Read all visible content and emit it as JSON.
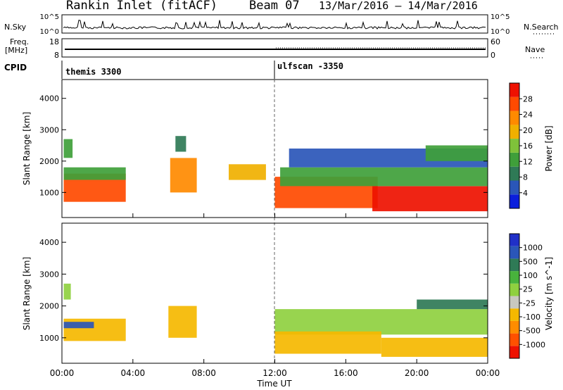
{
  "header": {
    "station": "Rankin Inlet (fitACF)",
    "beam": "Beam 07",
    "date_range": "13/Mar/2016 – 14/Mar/2016"
  },
  "strip_nsky": {
    "left_label": "N.Sky",
    "right_label": "N.Search",
    "tick_top": "10^5",
    "tick_bottom": "10^0",
    "right_tick_top": "10^5",
    "right_tick_bottom": "10^0"
  },
  "strip_freq": {
    "left_label_1": "Freq.",
    "left_label_2": "[MHz]",
    "left_tick_top": "18",
    "left_tick_bottom": "8",
    "right_label": "Nave",
    "right_tick_top": "60",
    "right_tick_bottom": "0"
  },
  "strip_cpid": {
    "label": "CPID",
    "segments": [
      {
        "name": "themis 3300",
        "start_hour": 0
      },
      {
        "name": "ulfscan -3350",
        "start_hour": 12
      }
    ]
  },
  "colors": {
    "power": [
      "#0a1edc",
      "#2a56b8",
      "#2f7a56",
      "#3f9f3a",
      "#7fc23a",
      "#f0b000",
      "#ff8a00",
      "#ff4a00",
      "#ee1100"
    ],
    "velocity": [
      "#2030c8",
      "#2a56b8",
      "#2f7a56",
      "#48b23c",
      "#8fd040",
      "#c8c8c0",
      "#f5b800",
      "#ff8c00",
      "#ff5000",
      "#ee1100"
    ]
  },
  "chart_data": [
    {
      "type": "heatmap",
      "name": "power",
      "ylabel": "Slant Range [km]",
      "ylim": [
        200,
        4600
      ],
      "yticks": [
        1000,
        2000,
        3000,
        4000
      ],
      "xlim_hours": [
        0,
        24
      ],
      "colorbar": {
        "label": "Power [dB]",
        "range": [
          0,
          32
        ],
        "tick_labels": [
          "4",
          "8",
          "12",
          "16",
          "20",
          "24",
          "28"
        ]
      },
      "regions": [
        {
          "t0": 0.1,
          "t1": 3.6,
          "r0": 700,
          "r1": 1600,
          "v": 27
        },
        {
          "t0": 0.1,
          "t1": 3.6,
          "r0": 1400,
          "r1": 1800,
          "v": 12
        },
        {
          "t0": 0.1,
          "t1": 0.6,
          "r0": 2100,
          "r1": 2700,
          "v": 14
        },
        {
          "t0": 6.1,
          "t1": 7.6,
          "r0": 1000,
          "r1": 2100,
          "v": 22
        },
        {
          "t0": 6.4,
          "t1": 7.0,
          "r0": 2300,
          "r1": 2800,
          "v": 10
        },
        {
          "t0": 9.4,
          "t1": 11.5,
          "r0": 1400,
          "r1": 1900,
          "v": 18
        },
        {
          "t0": 12.0,
          "t1": 17.8,
          "r0": 500,
          "r1": 1500,
          "v": 28
        },
        {
          "t0": 12.3,
          "t1": 24.0,
          "r0": 1200,
          "r1": 1800,
          "v": 12
        },
        {
          "t0": 17.5,
          "t1": 24.0,
          "r0": 400,
          "r1": 1200,
          "v": 30
        },
        {
          "t0": 12.8,
          "t1": 24.0,
          "r0": 1800,
          "r1": 2400,
          "v": 6
        },
        {
          "t0": 20.5,
          "t1": 24.0,
          "r0": 2000,
          "r1": 2500,
          "v": 13
        }
      ]
    },
    {
      "type": "heatmap",
      "name": "velocity",
      "ylabel": "Slant Range [km]",
      "ylim": [
        200,
        4600
      ],
      "yticks": [
        1000,
        2000,
        3000,
        4000
      ],
      "xlim_hours": [
        0,
        24
      ],
      "xticks": [
        "00:00",
        "04:00",
        "08:00",
        "12:00",
        "16:00",
        "20:00",
        "00:00"
      ],
      "xlabel": "Time UT",
      "colorbar": {
        "label": "Velocity [m s^-1]",
        "tick_labels": [
          "1000",
          "500",
          "100",
          "25",
          "-25",
          "-100",
          "-500",
          "-1000"
        ]
      },
      "regions": [
        {
          "t0": 0.1,
          "t1": 3.6,
          "r0": 900,
          "r1": 1600,
          "v": -400
        },
        {
          "t0": 0.1,
          "t1": 1.8,
          "r0": 1300,
          "r1": 1500,
          "v": 700
        },
        {
          "t0": 0.1,
          "t1": 0.5,
          "r0": 2200,
          "r1": 2700,
          "v": 0
        },
        {
          "t0": 6.0,
          "t1": 7.6,
          "r0": 1000,
          "r1": 2000,
          "v": -300
        },
        {
          "t0": 12.0,
          "t1": 24.0,
          "r0": 1100,
          "r1": 1900,
          "v": 0
        },
        {
          "t0": 12.0,
          "t1": 18.0,
          "r0": 500,
          "r1": 1200,
          "v": -200
        },
        {
          "t0": 18.0,
          "t1": 24.0,
          "r0": 400,
          "r1": 1000,
          "v": -150
        },
        {
          "t0": 20.0,
          "t1": 24.0,
          "r0": 1900,
          "r1": 2200,
          "v": 300
        }
      ]
    }
  ]
}
